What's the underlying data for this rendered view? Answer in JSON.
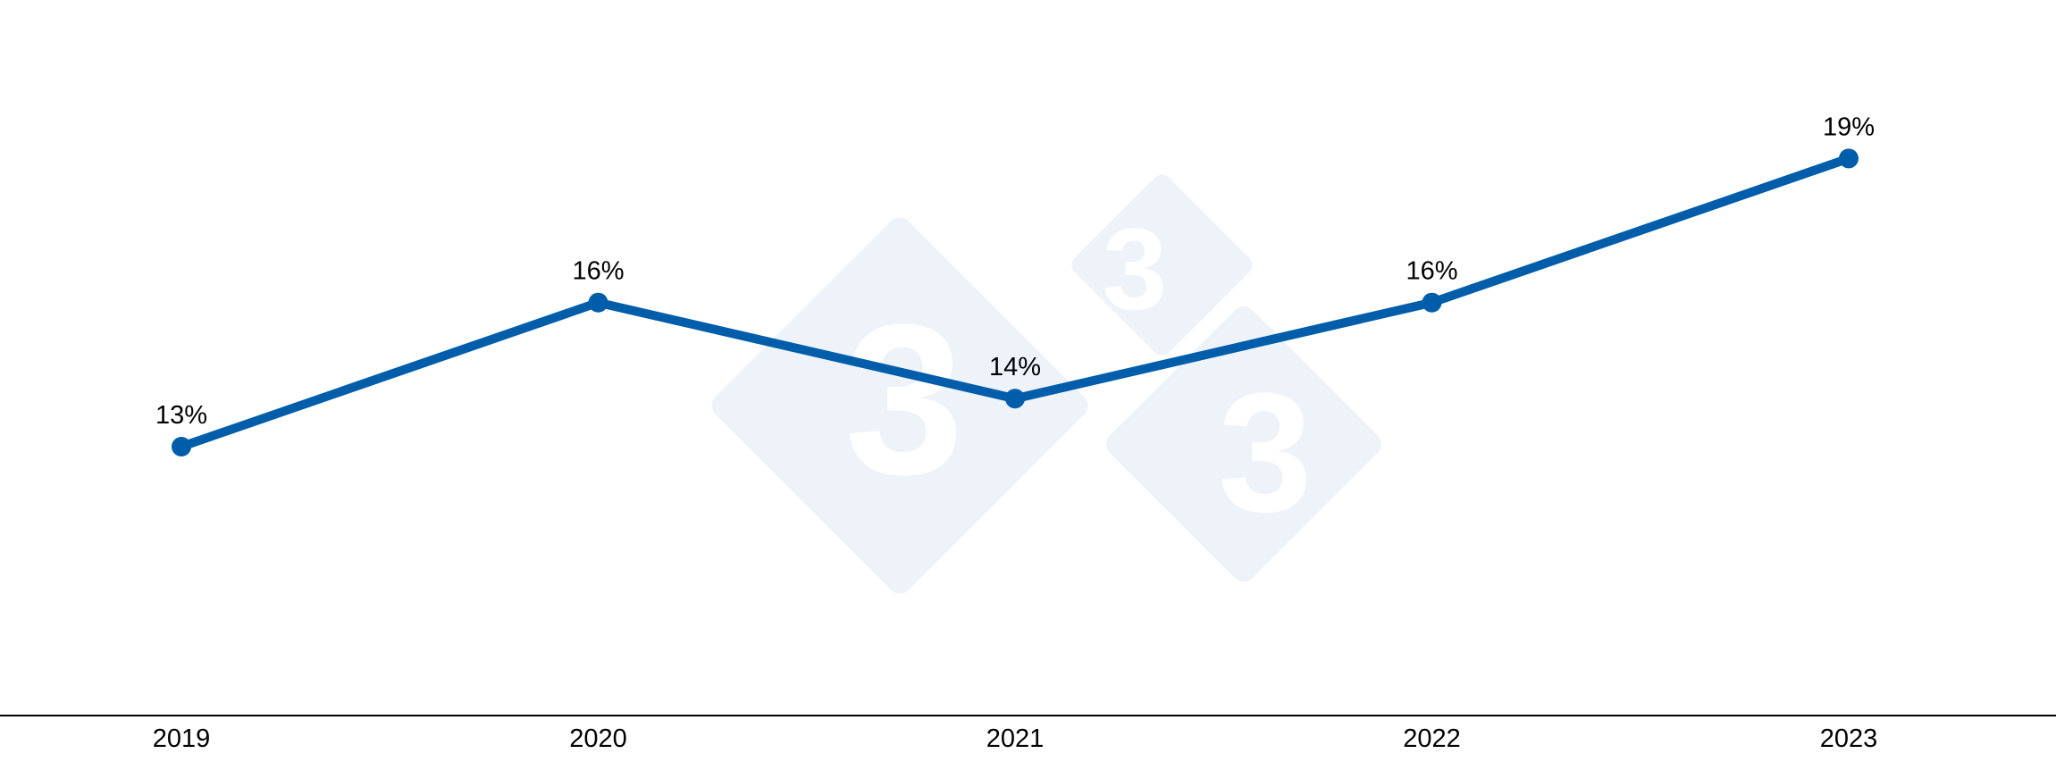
{
  "chart_data": {
    "type": "line",
    "categories": [
      "2019",
      "2020",
      "2021",
      "2022",
      "2023"
    ],
    "series": [
      {
        "values": [
          13,
          16,
          14,
          16,
          19
        ],
        "data_labels": [
          "13%",
          "16%",
          "14%",
          "16%",
          "19%"
        ],
        "color": "#005DAA"
      }
    ],
    "title": "",
    "xlabel": "",
    "ylabel": "",
    "ylim": [
      7.4,
      22.3
    ],
    "grid": false,
    "legend": "none",
    "x_axis_line": true
  },
  "watermark": {
    "logo_text": [
      "3",
      "3",
      "3"
    ],
    "color": "#EEF3F9"
  }
}
